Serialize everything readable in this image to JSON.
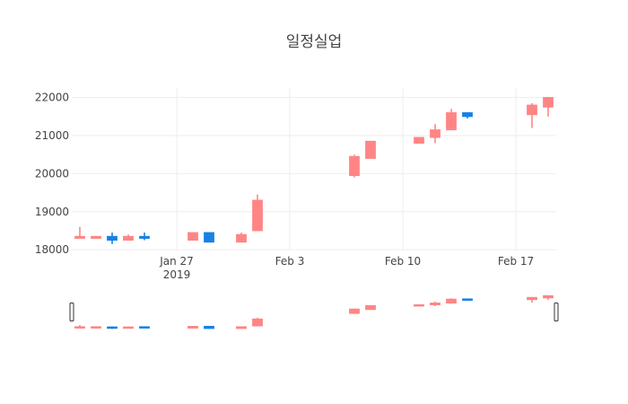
{
  "chart_data": {
    "type": "candlestick",
    "title": "일정실업",
    "xlabel": "",
    "ylabel": "",
    "ylim": [
      17980,
      22250
    ],
    "xlim": [
      "2019-01-21",
      "2019-02-19"
    ],
    "y_ticks": [
      18000,
      19000,
      20000,
      21000,
      22000
    ],
    "x_ticks": [
      {
        "date": "2019-01-27",
        "label": "Jan 27",
        "sublabel": "2019"
      },
      {
        "date": "2019-02-03",
        "label": "Feb 3",
        "sublabel": ""
      },
      {
        "date": "2019-02-10",
        "label": "Feb 10",
        "sublabel": ""
      },
      {
        "date": "2019-02-17",
        "label": "Feb 17",
        "sublabel": ""
      }
    ],
    "grid": true,
    "legend": "none",
    "rangeslider": true,
    "colors": {
      "increasing": "#ff8585",
      "decreasing": "#1781e6",
      "grid": "#eeeeee",
      "text": "#444444"
    },
    "series": [
      {
        "points": [
          {
            "date": "2019-01-21",
            "open": 18300,
            "high": 18600,
            "low": 18300,
            "close": 18350
          },
          {
            "date": "2019-01-22",
            "open": 18300,
            "high": 18350,
            "low": 18300,
            "close": 18350
          },
          {
            "date": "2019-01-23",
            "open": 18350,
            "high": 18450,
            "low": 18150,
            "close": 18250
          },
          {
            "date": "2019-01-24",
            "open": 18250,
            "high": 18400,
            "low": 18250,
            "close": 18350
          },
          {
            "date": "2019-01-25",
            "open": 18350,
            "high": 18450,
            "low": 18250,
            "close": 18300
          },
          {
            "date": "2019-01-28",
            "open": 18250,
            "high": 18450,
            "low": 18250,
            "close": 18450
          },
          {
            "date": "2019-01-29",
            "open": 18450,
            "high": 18450,
            "low": 18200,
            "close": 18200
          },
          {
            "date": "2019-01-31",
            "open": 18200,
            "high": 18450,
            "low": 18200,
            "close": 18400
          },
          {
            "date": "2019-02-01",
            "open": 18500,
            "high": 19450,
            "low": 18500,
            "close": 19300
          },
          {
            "date": "2019-02-07",
            "open": 19950,
            "high": 20500,
            "low": 19900,
            "close": 20450
          },
          {
            "date": "2019-02-08",
            "open": 20400,
            "high": 20850,
            "low": 20400,
            "close": 20850
          },
          {
            "date": "2019-02-11",
            "open": 20800,
            "high": 20950,
            "low": 20800,
            "close": 20950
          },
          {
            "date": "2019-02-12",
            "open": 20950,
            "high": 21300,
            "low": 20800,
            "close": 21150
          },
          {
            "date": "2019-02-13",
            "open": 21150,
            "high": 21700,
            "low": 21150,
            "close": 21600
          },
          {
            "date": "2019-02-14",
            "open": 21600,
            "high": 21600,
            "low": 21450,
            "close": 21500
          },
          {
            "date": "2019-02-18",
            "open": 21550,
            "high": 21850,
            "low": 21200,
            "close": 21800
          },
          {
            "date": "2019-02-19",
            "open": 21750,
            "high": 22000,
            "low": 21500,
            "close": 22000
          }
        ]
      }
    ]
  }
}
